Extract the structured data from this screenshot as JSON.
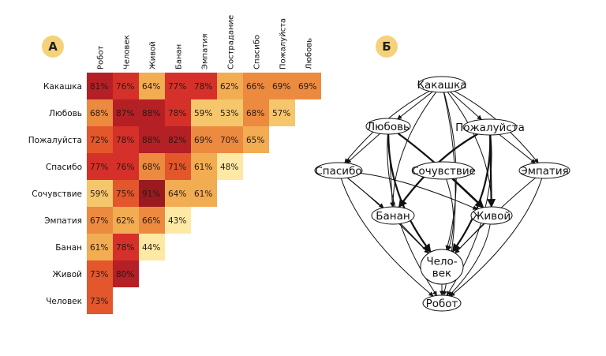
{
  "panels": {
    "a_label": "А",
    "b_label": "Б"
  },
  "chart_data": [
    {
      "type": "heatmap",
      "columns": [
        "Робот",
        "Человек",
        "Живой",
        "Банан",
        "Эмпатия",
        "Сострадание",
        "Спасибо",
        "Пожалуйста",
        "Любовь"
      ],
      "rows": [
        "Какашка",
        "Любовь",
        "Пожалуйста",
        "Спасибо",
        "Сочувствие",
        "Эмпатия",
        "Банан",
        "Живой",
        "Человек"
      ],
      "values": [
        [
          81,
          76,
          64,
          77,
          78,
          62,
          66,
          69,
          69
        ],
        [
          68,
          87,
          88,
          78,
          59,
          53,
          68,
          57
        ],
        [
          72,
          78,
          88,
          82,
          69,
          70,
          65
        ],
        [
          77,
          76,
          68,
          71,
          61,
          48
        ],
        [
          59,
          75,
          91,
          64,
          61
        ],
        [
          67,
          62,
          66,
          43
        ],
        [
          61,
          78,
          44
        ],
        [
          73,
          80
        ],
        [
          73
        ]
      ],
      "value_suffix": "%",
      "colors": {
        "c40": "#fde9a3",
        "c55": "#f6c66d",
        "c63": "#f2ac52",
        "c68": "#ec8a40",
        "c73": "#e4562b",
        "c78": "#d6302a",
        "c85": "#b51f26",
        "c90": "#9b1a20"
      }
    },
    {
      "type": "diagram",
      "nodes": [
        {
          "id": "kakashka",
          "label": "Какашка"
        },
        {
          "id": "lyubov",
          "label": "Любовь"
        },
        {
          "id": "pozhaluysta",
          "label": "Пожалуйста"
        },
        {
          "id": "spasibo",
          "label": "Спасибо"
        },
        {
          "id": "sochuvstvie",
          "label": "Сочувствие"
        },
        {
          "id": "empatiya",
          "label": "Эмпатия"
        },
        {
          "id": "banan",
          "label": "Банан"
        },
        {
          "id": "zhivoy",
          "label": "Живой"
        },
        {
          "id": "chelovek",
          "label": "Чело-\nвек"
        },
        {
          "id": "robot",
          "label": "Робот"
        }
      ],
      "edges": [
        {
          "from": "kakashka",
          "to": "lyubov"
        },
        {
          "from": "kakashka",
          "to": "pozhaluysta"
        },
        {
          "from": "kakashka",
          "to": "spasibo"
        },
        {
          "from": "kakashka",
          "to": "empatiya"
        },
        {
          "from": "kakashka",
          "to": "banan"
        },
        {
          "from": "kakashka",
          "to": "zhivoy"
        },
        {
          "from": "kakashka",
          "to": "chelovek"
        },
        {
          "from": "kakashka",
          "to": "robot"
        },
        {
          "from": "lyubov",
          "to": "spasibo"
        },
        {
          "from": "lyubov",
          "to": "banan"
        },
        {
          "from": "lyubov",
          "to": "zhivoy",
          "bold": true
        },
        {
          "from": "lyubov",
          "to": "chelovek",
          "bold": true
        },
        {
          "from": "lyubov",
          "to": "robot"
        },
        {
          "from": "pozhaluysta",
          "to": "banan",
          "bold": true
        },
        {
          "from": "pozhaluysta",
          "to": "zhivoy",
          "bold": true
        },
        {
          "from": "pozhaluysta",
          "to": "chelovek",
          "bold": true
        },
        {
          "from": "pozhaluysta",
          "to": "robot"
        },
        {
          "from": "pozhaluysta",
          "to": "empatiya"
        },
        {
          "from": "spasibo",
          "to": "banan"
        },
        {
          "from": "spasibo",
          "to": "zhivoy"
        },
        {
          "from": "spasibo",
          "to": "chelovek"
        },
        {
          "from": "spasibo",
          "to": "robot"
        },
        {
          "from": "sochuvstvie",
          "to": "zhivoy",
          "bold": true
        },
        {
          "from": "sochuvstvie",
          "to": "chelovek"
        },
        {
          "from": "empatiya",
          "to": "chelovek"
        },
        {
          "from": "empatiya",
          "to": "robot"
        },
        {
          "from": "banan",
          "to": "chelovek"
        },
        {
          "from": "zhivoy",
          "to": "chelovek"
        },
        {
          "from": "zhivoy",
          "to": "robot"
        },
        {
          "from": "chelovek",
          "to": "robot"
        }
      ]
    }
  ]
}
